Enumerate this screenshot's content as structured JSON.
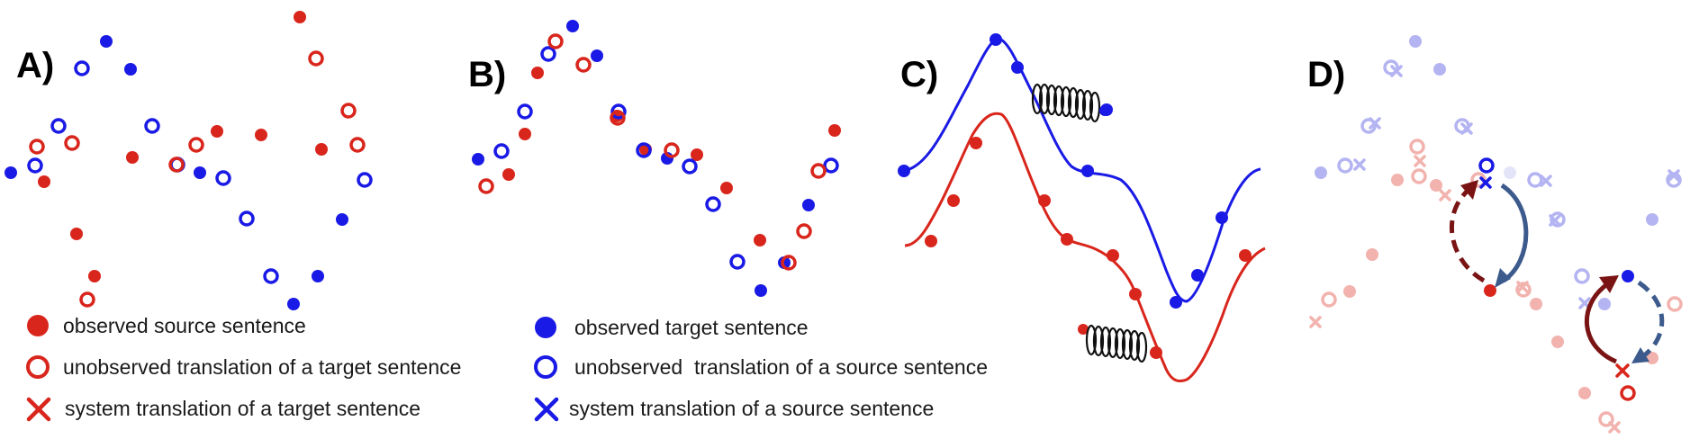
{
  "colors": {
    "source": "#d9261c",
    "target": "#1a1ae6",
    "source_faint": "#f2b3ae",
    "target_faint": "#b4b4f2",
    "arrow_dark_red": "#7a1414",
    "arrow_steel_blue": "#3c5a8c",
    "spring": "#111111"
  },
  "panels": {
    "a": {
      "label": "A)"
    },
    "b": {
      "label": "B)"
    },
    "c": {
      "label": "C)"
    },
    "d": {
      "label": "D)"
    }
  },
  "legend": {
    "observed_source": "observed source sentence",
    "unobserved_target_translation": "unobserved translation of a target sentence",
    "system_target_translation": "system translation of a target sentence",
    "observed_target": "observed target sentence",
    "unobserved_source_translation": "unobserved  translation of a source sentence",
    "system_source_translation": "system translation of a source sentence"
  }
}
